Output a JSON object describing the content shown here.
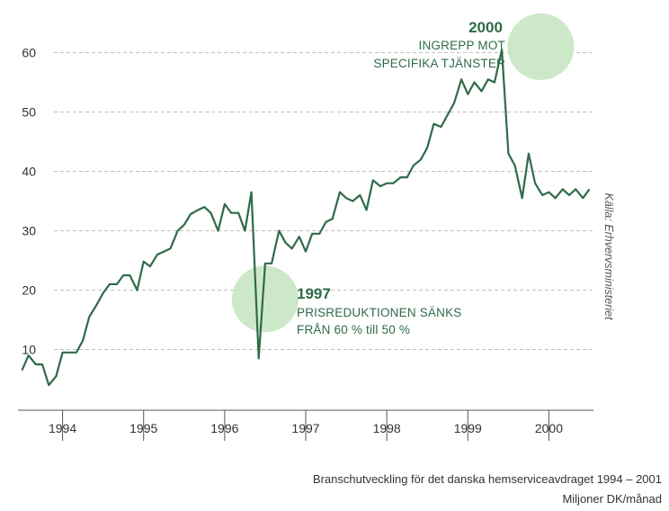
{
  "colors": {
    "line": "#2f6b48",
    "highlight": "#c8e6c3",
    "grid": "#bfbfbf",
    "axis": "#555555",
    "text": "#333333"
  },
  "chart_data": {
    "type": "line",
    "title": "",
    "xlabel": "",
    "ylabel": "",
    "ylim": [
      0,
      65
    ],
    "yticks": [
      10,
      20,
      30,
      40,
      50,
      60
    ],
    "xlim": [
      1993.45,
      2000.55
    ],
    "x_categories": [
      "1994",
      "1995",
      "1996",
      "1997",
      "1998",
      "1999",
      "2000"
    ],
    "grid": "horizontal dashed",
    "series": [
      {
        "name": "Miljoner DK/månad",
        "x": [
          1993.5,
          1993.58,
          1993.67,
          1993.75,
          1993.83,
          1993.92,
          1994.0,
          1994.08,
          1994.17,
          1994.25,
          1994.33,
          1994.42,
          1994.5,
          1994.58,
          1994.67,
          1994.75,
          1994.83,
          1994.92,
          1995.0,
          1995.08,
          1995.17,
          1995.25,
          1995.33,
          1995.42,
          1995.5,
          1995.58,
          1995.67,
          1995.75,
          1995.83,
          1995.92,
          1996.0,
          1996.08,
          1996.17,
          1996.25,
          1996.33,
          1996.42,
          1996.5,
          1996.58,
          1996.67,
          1996.75,
          1996.83,
          1996.92,
          1997.0,
          1997.08,
          1997.17,
          1997.25,
          1997.33,
          1997.42,
          1997.5,
          1997.58,
          1997.67,
          1997.75,
          1997.83,
          1997.92,
          1998.0,
          1998.08,
          1998.17,
          1998.25,
          1998.33,
          1998.42,
          1998.5,
          1998.58,
          1998.67,
          1998.75,
          1998.83,
          1998.92,
          1999.0,
          1999.08,
          1999.17,
          1999.25,
          1999.33,
          1999.42,
          1999.5,
          1999.58,
          1999.67,
          1999.75,
          1999.83,
          1999.92,
          2000.0,
          2000.08,
          2000.17,
          2000.25,
          2000.33,
          2000.42,
          2000.5
        ],
        "values": [
          6.5,
          9,
          7.5,
          7.5,
          4,
          5.5,
          9.5,
          9.5,
          9.5,
          11.5,
          15.5,
          17.5,
          19.5,
          21,
          21,
          22.5,
          22.5,
          20,
          24.8,
          24,
          26,
          26.5,
          27,
          30,
          31,
          32.8,
          33.5,
          34,
          33,
          30,
          34.5,
          33,
          33,
          30,
          36.5,
          8.5,
          24.5,
          24.5,
          30,
          28,
          27,
          29,
          26.5,
          29.5,
          29.5,
          31.5,
          32,
          36.5,
          35.5,
          35,
          36,
          33.5,
          38.5,
          37.5,
          38,
          38,
          39,
          39,
          41,
          42,
          44,
          48,
          47.5,
          49.5,
          51.5,
          55.5,
          53,
          55,
          53.5,
          55.5,
          55,
          60.5,
          43,
          41,
          35.5,
          43,
          38,
          36,
          36.5,
          35.5,
          37,
          36,
          37,
          35.5,
          37
        ]
      }
    ],
    "annotations": [
      {
        "year": "2000",
        "lines": [
          "INGREPP MOT",
          "SPECIFIKA TJÄNSTER"
        ],
        "x": 1999.9,
        "y": 61
      },
      {
        "year": "1997",
        "lines": [
          "PRISREDUKTIONEN SÄNKS",
          "FRÅN 60 % till 50 %"
        ],
        "x": 1996.5,
        "y": 18.5
      }
    ],
    "source": "Källa: Erhvervsministeriet"
  },
  "caption": {
    "line1": "Branschutveckling för det danska hemserviceavdraget 1994 – 2001",
    "line2": "Miljoner DK/månad"
  }
}
